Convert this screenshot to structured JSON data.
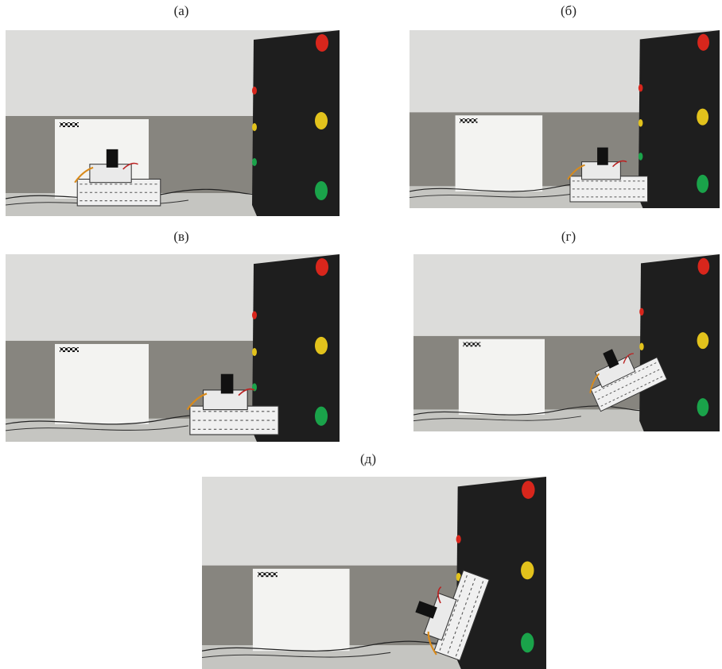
{
  "panels": [
    {
      "label": "(а)"
    },
    {
      "label": "(б)"
    },
    {
      "label": "(в)"
    },
    {
      "label": "(г)"
    },
    {
      "label": "(д)"
    }
  ]
}
